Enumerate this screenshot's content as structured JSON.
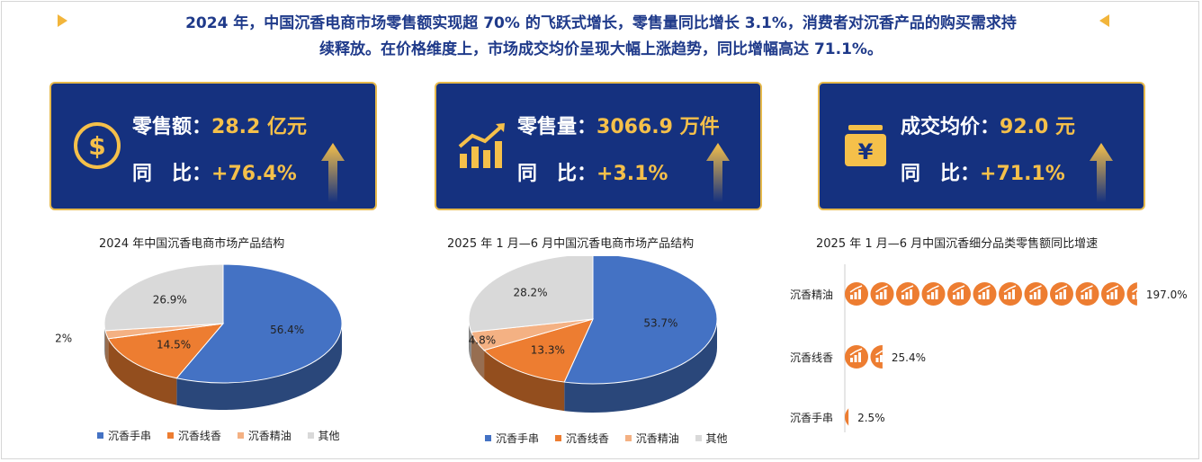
{
  "headline": {
    "line1": "2024 年，中国沉香电商市场零售额实现超 70% 的飞跃式增长，零售量同比增长 3.1%，消费者对沉香产品的购买需求持",
    "line2": "续释放。在价格维度上，市场成交均价呈现大幅上涨趋势，同比增幅高达 71.1%。"
  },
  "cards": [
    {
      "label": "零售额：",
      "value": "28.2 亿元",
      "yoy_label": "同　比：",
      "yoy_value": "+76.4%",
      "icon": "dollar-coin-icon"
    },
    {
      "label": "零售量：",
      "value": "3066.9 万件",
      "yoy_label": "同　比：",
      "yoy_value": "+3.1%",
      "icon": "bar-growth-icon"
    },
    {
      "label": "成交均价：",
      "value": "92.0 元",
      "yoy_label": "同　比：",
      "yoy_value": "+71.1%",
      "icon": "yuan-box-icon"
    }
  ],
  "colors": {
    "navy": "#15317f",
    "gold": "#f5c04a",
    "blue_series": "#4472c4",
    "orange_series": "#ed7d31",
    "peach_series": "#f4b183",
    "gray_series": "#d9d9d9"
  },
  "chart_data": [
    {
      "type": "pie",
      "title": "2024 年中国沉香电商市场产品结构",
      "categories": [
        "沉香手串",
        "沉香线香",
        "沉香精油",
        "其他"
      ],
      "values": [
        56.4,
        14.5,
        2.2,
        26.9
      ],
      "labels": [
        "56.4%",
        "14.5%",
        "2.2%",
        "26.9%"
      ],
      "legend": "bottom"
    },
    {
      "type": "pie",
      "title": "2025 年 1 月—6 月中国沉香电商市场产品结构",
      "categories": [
        "沉香手串",
        "沉香线香",
        "沉香精油",
        "其他"
      ],
      "values": [
        53.7,
        13.3,
        4.8,
        28.2
      ],
      "labels": [
        "53.7%",
        "13.3%",
        "4.8%",
        "28.2%"
      ],
      "legend": "bottom"
    },
    {
      "type": "bar",
      "orientation": "horizontal",
      "title": "2025 年 1 月—6 月中国沉香细分品类零售额同比增速",
      "categories": [
        "沉香精油",
        "沉香线香",
        "沉香手串"
      ],
      "values": [
        197.0,
        25.4,
        2.5
      ],
      "labels": [
        "197.0%",
        "25.4%",
        "2.5%"
      ],
      "unit": "%",
      "icon": "growth-chart-icon"
    }
  ]
}
